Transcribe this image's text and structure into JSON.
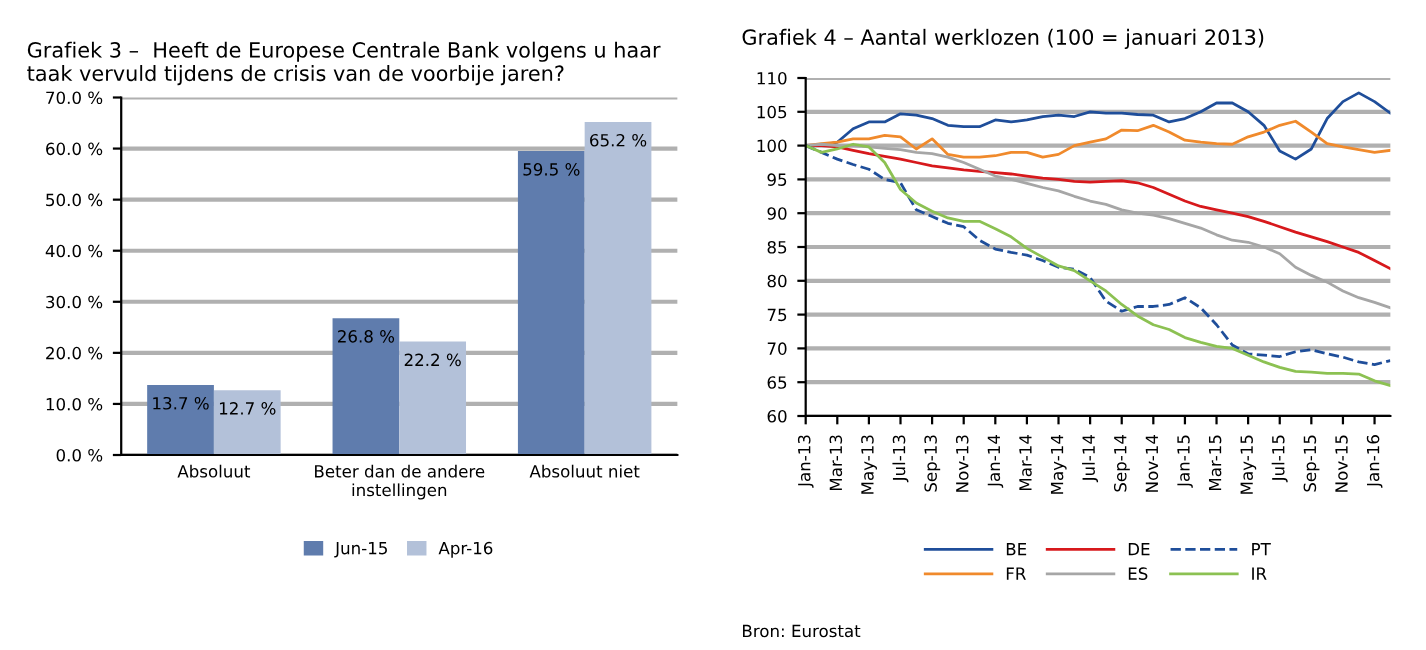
{
  "chart_data": [
    {
      "type": "bar",
      "title": "Grafiek 3 –  Heeft de Europese Centrale Bank volgens u haar taak vervuld tijdens de crisis van de voorbije jaren?",
      "categories": [
        "Absoluut",
        "Beter dan de andere\ninstellingen",
        "Absoluut niet"
      ],
      "series": [
        {
          "name": "Jun-15",
          "color": "#5f7cad",
          "values": [
            13.7,
            26.8,
            59.5
          ],
          "value_labels": [
            "13.7 %",
            "26.8 %",
            "59.5 %"
          ]
        },
        {
          "name": "Apr-16",
          "color": "#b3c1d9",
          "values": [
            12.7,
            22.2,
            65.2
          ],
          "value_labels": [
            "12.7 %",
            "22.2 %",
            "65.2 %"
          ]
        }
      ],
      "ylim": [
        0,
        70
      ],
      "yticks": [
        {
          "value": 0,
          "label": "0.0 %"
        },
        {
          "value": 10,
          "label": "10.0 %"
        },
        {
          "value": 20,
          "label": "20.0 %"
        },
        {
          "value": 30,
          "label": "30.0 %"
        },
        {
          "value": 40,
          "label": "40.0 %"
        },
        {
          "value": 50,
          "label": "50.0 %"
        },
        {
          "value": 60,
          "label": "60.0 %"
        },
        {
          "value": 70,
          "label": "70.0 %"
        }
      ],
      "grid": "y",
      "legend": "bottom"
    },
    {
      "type": "line",
      "title": "Grafiek 4 – Aantal werklozen (100 = januari 2013)",
      "categories": [
        "Jan-13",
        null,
        "Mar-13",
        null,
        "May-13",
        null,
        "Jul-13",
        null,
        "Sep-13",
        null,
        "Nov-13",
        null,
        "Jan-14",
        null,
        "Mar-14",
        null,
        "May-14",
        null,
        "Jul-14",
        null,
        "Sep-14",
        null,
        "Nov-14",
        null,
        "Jan-15",
        null,
        "Mar-15",
        null,
        "May-15",
        null,
        "Jul-15",
        null,
        "Sep-15",
        null,
        "Nov-15",
        null,
        "Jan-16",
        null
      ],
      "series": [
        {
          "name": "BE",
          "color": "#1f4e9a",
          "values": [
            100,
            100,
            100.5,
            102.5,
            103.5,
            103.5,
            104.7,
            104.5,
            104,
            103,
            102.8,
            102.8,
            103.8,
            103.5,
            103.8,
            104.3,
            104.5,
            104.3,
            105,
            104.8,
            104.8,
            104.6,
            104.5,
            103.5,
            104,
            105,
            106.3,
            106.3,
            105,
            103,
            99.2,
            98,
            99.5,
            104,
            106.5,
            107.8,
            106.5,
            104.8
          ]
        },
        {
          "name": "FR",
          "color": "#f08a2c",
          "values": [
            100,
            100.3,
            100.5,
            101,
            101,
            101.5,
            101.3,
            99.5,
            101,
            98.7,
            98.3,
            98.3,
            98.5,
            99,
            99,
            98.3,
            98.7,
            100,
            100.5,
            101,
            102.3,
            102.2,
            103,
            102,
            100.8,
            100.5,
            100.3,
            100.2,
            101.3,
            102,
            103,
            103.6,
            102,
            100.3,
            99.8,
            99.4,
            99,
            99.3
          ]
        },
        {
          "name": "DE",
          "color": "#d7191c",
          "values": [
            100,
            100,
            99.8,
            99.3,
            98.8,
            98.4,
            98,
            97.5,
            97,
            96.7,
            96.4,
            96.2,
            96,
            95.8,
            95.5,
            95.2,
            95,
            94.7,
            94.6,
            94.7,
            94.8,
            94.5,
            93.8,
            92.8,
            91.8,
            91,
            90.5,
            90,
            89.5,
            88.8,
            88,
            87.2,
            86.5,
            85.8,
            85,
            84.2,
            83,
            81.8
          ]
        },
        {
          "name": "ES",
          "color": "#a6a6a6",
          "values": [
            100,
            100.2,
            100,
            100,
            99.8,
            99.6,
            99.4,
            99,
            98.8,
            98.3,
            97.5,
            96.5,
            95.5,
            95,
            94.4,
            93.8,
            93.3,
            92.5,
            91.8,
            91.3,
            90.5,
            90,
            89.7,
            89.2,
            88.5,
            87.8,
            86.8,
            86,
            85.7,
            85,
            84,
            82,
            80.8,
            79.8,
            78.5,
            77.5,
            76.8,
            76
          ]
        },
        {
          "name": "PT",
          "color": "#1f4e9a",
          "line_style": "dashed",
          "values": [
            100,
            99,
            98,
            97.2,
            96.5,
            95,
            94.5,
            90.5,
            89.5,
            88.5,
            88,
            86,
            84.7,
            84.2,
            83.8,
            83,
            82,
            81.7,
            80.5,
            77,
            75.5,
            76.2,
            76.2,
            76.5,
            77.5,
            76,
            73.5,
            70.5,
            69.2,
            69,
            68.8,
            69.5,
            69.8,
            69.2,
            68.7,
            68,
            67.6,
            68.2
          ]
        },
        {
          "name": "IR",
          "color": "#8cc152",
          "values": [
            100,
            99,
            99.5,
            100.2,
            99.8,
            97.5,
            93.5,
            91.5,
            90.3,
            89.3,
            88.8,
            88.8,
            87.7,
            86.5,
            84.8,
            83.5,
            82.2,
            81.5,
            80,
            78.5,
            76.5,
            74.8,
            73.5,
            72.8,
            71.6,
            70.9,
            70.3,
            70,
            69,
            68,
            67.2,
            66.6,
            66.5,
            66.3,
            66.3,
            66.2,
            65.2,
            64.5
          ]
        }
      ],
      "ylim": [
        60,
        110
      ],
      "yticks": [
        60,
        65,
        70,
        75,
        80,
        85,
        90,
        95,
        100,
        105,
        110
      ],
      "grid": "y",
      "legend": "bottom",
      "line_style": "solid",
      "marker": "none",
      "annotations": [
        "Bron: Eurostat"
      ]
    }
  ]
}
